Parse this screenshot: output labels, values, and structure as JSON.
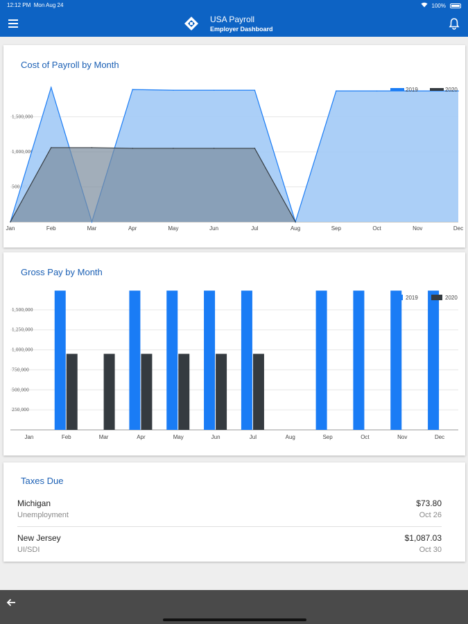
{
  "status_bar": {
    "time": "12:12 PM",
    "date": "Mon Aug 24",
    "battery": "100%"
  },
  "app_bar": {
    "title": "USA Payroll",
    "subtitle": "Employer Dashboard",
    "menu_icon": "hamburger-menu-icon",
    "notification_icon": "bell-icon"
  },
  "colors": {
    "primary": "#0d63c4",
    "series_2019": "#1a7cf5",
    "series_2020": "#353b40",
    "area_2019": "#a6ccf7",
    "area_2020": "#7a8b9c"
  },
  "cost_card": {
    "title": "Cost of Payroll by Month",
    "chart_data": {
      "type": "area",
      "categories": [
        "Jan",
        "Feb",
        "Mar",
        "Apr",
        "May",
        "Jun",
        "Jul",
        "Aug",
        "Sep",
        "Oct",
        "Nov",
        "Dec"
      ],
      "y_ticks": [
        "500,000",
        "1,000,000",
        "1,500,000"
      ],
      "ylim": [
        0,
        2000000
      ],
      "legend_position": "top-right",
      "series": [
        {
          "name": "2019",
          "values": [
            0,
            1920000,
            0,
            1890000,
            1880000,
            1880000,
            1880000,
            0,
            1870000,
            1870000,
            1870000,
            1870000
          ]
        },
        {
          "name": "2020",
          "values": [
            0,
            1060000,
            1060000,
            1050000,
            1050000,
            1050000,
            1050000,
            0,
            null,
            null,
            null,
            null
          ]
        }
      ]
    }
  },
  "gross_card": {
    "title": "Gross Pay by Month",
    "chart_data": {
      "type": "bar",
      "categories": [
        "Jan",
        "Feb",
        "Mar",
        "Apr",
        "May",
        "Jun",
        "Jul",
        "Aug",
        "Sep",
        "Oct",
        "Nov",
        "Dec"
      ],
      "y_ticks": [
        "250,000",
        "500,000",
        "750,000",
        "1,000,000",
        "1,250,000",
        "1,500,000"
      ],
      "ylim": [
        0,
        1750000
      ],
      "legend_position": "top-right",
      "series": [
        {
          "name": "2019",
          "values": [
            0,
            1740000,
            0,
            1740000,
            1740000,
            1740000,
            1740000,
            0,
            1740000,
            1740000,
            1740000,
            1740000
          ]
        },
        {
          "name": "2020",
          "values": [
            0,
            950000,
            950000,
            950000,
            950000,
            950000,
            950000,
            0,
            0,
            0,
            0,
            0
          ]
        }
      ]
    }
  },
  "taxes_card": {
    "title": "Taxes Due",
    "items": [
      {
        "state": "Michigan",
        "type": "Unemployment",
        "amount": "$73.80",
        "due": "Oct 26"
      },
      {
        "state": "New Jersey",
        "type": "UI/SDI",
        "amount": "$1,087.03",
        "due": "Oct 30"
      }
    ]
  },
  "bottom_bar": {
    "back_icon": "back-arrow-icon"
  }
}
